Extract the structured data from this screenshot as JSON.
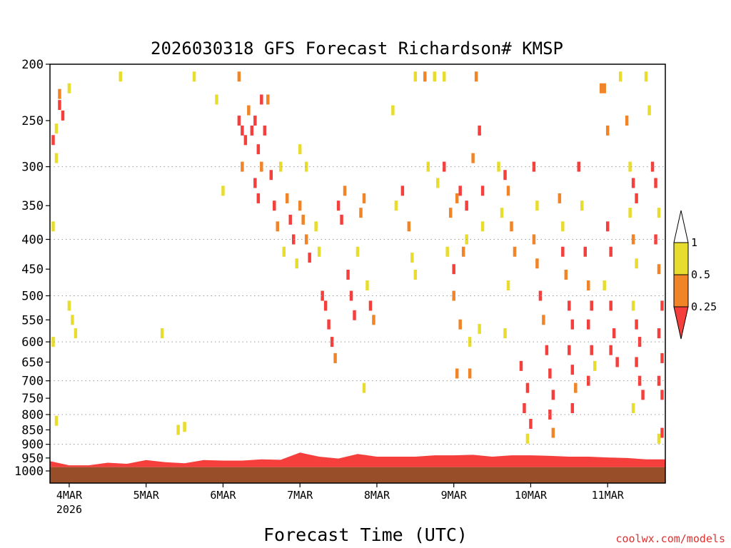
{
  "chart_data": {
    "type": "heatmap",
    "title": "2026030318 GFS Forecast Richardson# KMSP",
    "xlabel": "Forecast Time (UTC)",
    "ylabel": "",
    "credit": "coolwx.com/models",
    "y_axis": {
      "scale": "log-pressure",
      "inverted": true,
      "range": [
        200,
        1000
      ],
      "ticks": [
        200,
        250,
        300,
        350,
        400,
        450,
        500,
        550,
        600,
        650,
        700,
        750,
        800,
        850,
        900,
        950,
        1000
      ],
      "gridlines": [
        300,
        400,
        500,
        600,
        700,
        800,
        900
      ]
    },
    "x_axis": {
      "range_hours": [
        0,
        192
      ],
      "ticks": [
        {
          "label": "4MAR",
          "sublabel": "2026",
          "hour": 6
        },
        {
          "label": "5MAR",
          "hour": 30
        },
        {
          "label": "6MAR",
          "hour": 54
        },
        {
          "label": "7MAR",
          "hour": 78
        },
        {
          "label": "8MAR",
          "hour": 102
        },
        {
          "label": "9MAR",
          "hour": 126
        },
        {
          "label": "10MAR",
          "hour": 150
        },
        {
          "label": "11MAR",
          "hour": 174
        }
      ]
    },
    "legend": {
      "position": "right",
      "boundaries": [
        "1",
        "0.5",
        "0.25"
      ],
      "bins": [
        {
          "range": ">1",
          "color": "#ffffff"
        },
        {
          "range": "0.5-1",
          "color": "#e8dc2e"
        },
        {
          "range": "0.25-0.5",
          "color": "#f08427"
        },
        {
          "range": "<0.25",
          "color": "#f53f3c"
        }
      ]
    },
    "colors": {
      "ground": "#994e2a",
      "yellow": "#e8dc2e",
      "orange": "#f08427",
      "red": "#f53f3c"
    },
    "surface_pressure_hpa": 985,
    "boundary_layer_top_hpa": [
      [
        0,
        962
      ],
      [
        6,
        978
      ],
      [
        12,
        978
      ],
      [
        18,
        968
      ],
      [
        24,
        972
      ],
      [
        30,
        958
      ],
      [
        36,
        966
      ],
      [
        42,
        970
      ],
      [
        48,
        958
      ],
      [
        54,
        960
      ],
      [
        60,
        960
      ],
      [
        66,
        955
      ],
      [
        72,
        957
      ],
      [
        78,
        930
      ],
      [
        84,
        945
      ],
      [
        90,
        952
      ],
      [
        96,
        935
      ],
      [
        102,
        945
      ],
      [
        108,
        945
      ],
      [
        114,
        945
      ],
      [
        120,
        940
      ],
      [
        126,
        940
      ],
      [
        132,
        938
      ],
      [
        138,
        945
      ],
      [
        144,
        940
      ],
      [
        150,
        940
      ],
      [
        156,
        942
      ],
      [
        162,
        945
      ],
      [
        168,
        945
      ],
      [
        174,
        948
      ],
      [
        180,
        950
      ],
      [
        186,
        955
      ],
      [
        192,
        955
      ]
    ],
    "cells": [
      {
        "h": 3,
        "p": 225,
        "c": "orange"
      },
      {
        "h": 3,
        "p": 235,
        "c": "red"
      },
      {
        "h": 4,
        "p": 245,
        "c": "red"
      },
      {
        "h": 2,
        "p": 258,
        "c": "yellow"
      },
      {
        "h": 1,
        "p": 270,
        "c": "red"
      },
      {
        "h": 6,
        "p": 220,
        "c": "yellow"
      },
      {
        "h": 2,
        "p": 290,
        "c": "yellow"
      },
      {
        "h": 1,
        "p": 380,
        "c": "yellow"
      },
      {
        "h": 6,
        "p": 520,
        "c": "yellow"
      },
      {
        "h": 7,
        "p": 550,
        "c": "yellow"
      },
      {
        "h": 8,
        "p": 580,
        "c": "yellow"
      },
      {
        "h": 1,
        "p": 600,
        "c": "yellow"
      },
      {
        "h": 2,
        "p": 820,
        "c": "yellow"
      },
      {
        "h": 22,
        "p": 210,
        "c": "yellow"
      },
      {
        "h": 45,
        "p": 210,
        "c": "yellow"
      },
      {
        "h": 35,
        "p": 580,
        "c": "yellow"
      },
      {
        "h": 40,
        "p": 850,
        "c": "yellow"
      },
      {
        "h": 42,
        "p": 840,
        "c": "yellow"
      },
      {
        "h": 52,
        "p": 230,
        "c": "yellow"
      },
      {
        "h": 54,
        "p": 330,
        "c": "yellow"
      },
      {
        "h": 59,
        "p": 210,
        "c": "orange"
      },
      {
        "h": 59,
        "p": 250,
        "c": "red"
      },
      {
        "h": 60,
        "p": 260,
        "c": "red"
      },
      {
        "h": 61,
        "p": 270,
        "c": "red"
      },
      {
        "h": 60,
        "p": 300,
        "c": "orange"
      },
      {
        "h": 62,
        "p": 240,
        "c": "orange"
      },
      {
        "h": 63,
        "p": 260,
        "c": "red"
      },
      {
        "h": 64,
        "p": 250,
        "c": "red"
      },
      {
        "h": 65,
        "p": 280,
        "c": "red"
      },
      {
        "h": 66,
        "p": 300,
        "c": "orange"
      },
      {
        "h": 64,
        "p": 320,
        "c": "red"
      },
      {
        "h": 65,
        "p": 340,
        "c": "red"
      },
      {
        "h": 66,
        "p": 230,
        "c": "red"
      },
      {
        "h": 67,
        "p": 260,
        "c": "red"
      },
      {
        "h": 68,
        "p": 230,
        "c": "orange"
      },
      {
        "h": 69,
        "p": 310,
        "c": "red"
      },
      {
        "h": 70,
        "p": 350,
        "c": "red"
      },
      {
        "h": 71,
        "p": 380,
        "c": "orange"
      },
      {
        "h": 72,
        "p": 300,
        "c": "yellow"
      },
      {
        "h": 74,
        "p": 340,
        "c": "orange"
      },
      {
        "h": 75,
        "p": 370,
        "c": "red"
      },
      {
        "h": 76,
        "p": 400,
        "c": "red"
      },
      {
        "h": 73,
        "p": 420,
        "c": "yellow"
      },
      {
        "h": 77,
        "p": 440,
        "c": "yellow"
      },
      {
        "h": 78,
        "p": 350,
        "c": "orange"
      },
      {
        "h": 79,
        "p": 370,
        "c": "orange"
      },
      {
        "h": 80,
        "p": 400,
        "c": "orange"
      },
      {
        "h": 81,
        "p": 430,
        "c": "red"
      },
      {
        "h": 78,
        "p": 280,
        "c": "yellow"
      },
      {
        "h": 80,
        "p": 300,
        "c": "yellow"
      },
      {
        "h": 83,
        "p": 380,
        "c": "yellow"
      },
      {
        "h": 84,
        "p": 420,
        "c": "yellow"
      },
      {
        "h": 85,
        "p": 500,
        "c": "red"
      },
      {
        "h": 86,
        "p": 520,
        "c": "red"
      },
      {
        "h": 87,
        "p": 560,
        "c": "red"
      },
      {
        "h": 88,
        "p": 600,
        "c": "red"
      },
      {
        "h": 89,
        "p": 640,
        "c": "orange"
      },
      {
        "h": 90,
        "p": 350,
        "c": "red"
      },
      {
        "h": 91,
        "p": 370,
        "c": "red"
      },
      {
        "h": 92,
        "p": 330,
        "c": "orange"
      },
      {
        "h": 93,
        "p": 460,
        "c": "red"
      },
      {
        "h": 94,
        "p": 500,
        "c": "red"
      },
      {
        "h": 95,
        "p": 540,
        "c": "red"
      },
      {
        "h": 96,
        "p": 420,
        "c": "yellow"
      },
      {
        "h": 97,
        "p": 360,
        "c": "orange"
      },
      {
        "h": 98,
        "p": 340,
        "c": "orange"
      },
      {
        "h": 99,
        "p": 480,
        "c": "yellow"
      },
      {
        "h": 100,
        "p": 520,
        "c": "red"
      },
      {
        "h": 101,
        "p": 550,
        "c": "orange"
      },
      {
        "h": 98,
        "p": 720,
        "c": "yellow"
      },
      {
        "h": 107,
        "p": 240,
        "c": "yellow"
      },
      {
        "h": 108,
        "p": 350,
        "c": "yellow"
      },
      {
        "h": 110,
        "p": 330,
        "c": "red"
      },
      {
        "h": 112,
        "p": 380,
        "c": "orange"
      },
      {
        "h": 113,
        "p": 430,
        "c": "yellow"
      },
      {
        "h": 114,
        "p": 460,
        "c": "yellow"
      },
      {
        "h": 114,
        "p": 210,
        "c": "yellow"
      },
      {
        "h": 117,
        "p": 210,
        "c": "orange"
      },
      {
        "h": 120,
        "p": 210,
        "c": "yellow"
      },
      {
        "h": 123,
        "p": 210,
        "c": "yellow"
      },
      {
        "h": 118,
        "p": 300,
        "c": "yellow"
      },
      {
        "h": 121,
        "p": 320,
        "c": "yellow"
      },
      {
        "h": 123,
        "p": 300,
        "c": "red"
      },
      {
        "h": 125,
        "p": 360,
        "c": "orange"
      },
      {
        "h": 124,
        "p": 420,
        "c": "yellow"
      },
      {
        "h": 127,
        "p": 340,
        "c": "orange"
      },
      {
        "h": 128,
        "p": 330,
        "c": "red"
      },
      {
        "h": 130,
        "p": 350,
        "c": "red"
      },
      {
        "h": 129,
        "p": 420,
        "c": "orange"
      },
      {
        "h": 130,
        "p": 400,
        "c": "yellow"
      },
      {
        "h": 126,
        "p": 450,
        "c": "red"
      },
      {
        "h": 126,
        "p": 500,
        "c": "orange"
      },
      {
        "h": 128,
        "p": 560,
        "c": "orange"
      },
      {
        "h": 131,
        "p": 600,
        "c": "yellow"
      },
      {
        "h": 127,
        "p": 680,
        "c": "orange"
      },
      {
        "h": 131,
        "p": 680,
        "c": "orange"
      },
      {
        "h": 133,
        "p": 210,
        "c": "orange"
      },
      {
        "h": 134,
        "p": 260,
        "c": "red"
      },
      {
        "h": 132,
        "p": 290,
        "c": "orange"
      },
      {
        "h": 135,
        "p": 330,
        "c": "red"
      },
      {
        "h": 135,
        "p": 380,
        "c": "yellow"
      },
      {
        "h": 134,
        "p": 570,
        "c": "yellow"
      },
      {
        "h": 140,
        "p": 300,
        "c": "yellow"
      },
      {
        "h": 142,
        "p": 310,
        "c": "red"
      },
      {
        "h": 143,
        "p": 330,
        "c": "orange"
      },
      {
        "h": 141,
        "p": 360,
        "c": "yellow"
      },
      {
        "h": 144,
        "p": 380,
        "c": "orange"
      },
      {
        "h": 145,
        "p": 420,
        "c": "orange"
      },
      {
        "h": 143,
        "p": 480,
        "c": "yellow"
      },
      {
        "h": 142,
        "p": 580,
        "c": "yellow"
      },
      {
        "h": 147,
        "p": 660,
        "c": "red"
      },
      {
        "h": 149,
        "p": 720,
        "c": "red"
      },
      {
        "h": 148,
        "p": 780,
        "c": "red"
      },
      {
        "h": 150,
        "p": 830,
        "c": "red"
      },
      {
        "h": 149,
        "p": 880,
        "c": "yellow"
      },
      {
        "h": 151,
        "p": 300,
        "c": "red"
      },
      {
        "h": 152,
        "p": 350,
        "c": "yellow"
      },
      {
        "h": 151,
        "p": 400,
        "c": "orange"
      },
      {
        "h": 152,
        "p": 440,
        "c": "orange"
      },
      {
        "h": 153,
        "p": 500,
        "c": "red"
      },
      {
        "h": 154,
        "p": 550,
        "c": "orange"
      },
      {
        "h": 155,
        "p": 620,
        "c": "red"
      },
      {
        "h": 156,
        "p": 680,
        "c": "red"
      },
      {
        "h": 157,
        "p": 740,
        "c": "red"
      },
      {
        "h": 156,
        "p": 800,
        "c": "red"
      },
      {
        "h": 157,
        "p": 860,
        "c": "orange"
      },
      {
        "h": 159,
        "p": 340,
        "c": "orange"
      },
      {
        "h": 160,
        "p": 380,
        "c": "yellow"
      },
      {
        "h": 160,
        "p": 420,
        "c": "red"
      },
      {
        "h": 161,
        "p": 460,
        "c": "orange"
      },
      {
        "h": 162,
        "p": 520,
        "c": "red"
      },
      {
        "h": 163,
        "p": 560,
        "c": "red"
      },
      {
        "h": 162,
        "p": 620,
        "c": "red"
      },
      {
        "h": 163,
        "p": 670,
        "c": "red"
      },
      {
        "h": 164,
        "p": 720,
        "c": "orange"
      },
      {
        "h": 163,
        "p": 780,
        "c": "red"
      },
      {
        "h": 165,
        "p": 300,
        "c": "red"
      },
      {
        "h": 166,
        "p": 350,
        "c": "yellow"
      },
      {
        "h": 167,
        "p": 420,
        "c": "red"
      },
      {
        "h": 168,
        "p": 480,
        "c": "orange"
      },
      {
        "h": 169,
        "p": 520,
        "c": "red"
      },
      {
        "h": 168,
        "p": 560,
        "c": "red"
      },
      {
        "h": 169,
        "p": 620,
        "c": "red"
      },
      {
        "h": 170,
        "p": 660,
        "c": "yellow"
      },
      {
        "h": 168,
        "p": 700,
        "c": "red"
      },
      {
        "h": 172,
        "p": 220,
        "c": "orange"
      },
      {
        "h": 173,
        "p": 220,
        "c": "orange"
      },
      {
        "h": 174,
        "p": 260,
        "c": "orange"
      },
      {
        "h": 174,
        "p": 380,
        "c": "red"
      },
      {
        "h": 175,
        "p": 420,
        "c": "red"
      },
      {
        "h": 173,
        "p": 480,
        "c": "yellow"
      },
      {
        "h": 175,
        "p": 520,
        "c": "red"
      },
      {
        "h": 176,
        "p": 580,
        "c": "red"
      },
      {
        "h": 175,
        "p": 620,
        "c": "red"
      },
      {
        "h": 177,
        "p": 650,
        "c": "red"
      },
      {
        "h": 178,
        "p": 210,
        "c": "yellow"
      },
      {
        "h": 180,
        "p": 250,
        "c": "orange"
      },
      {
        "h": 181,
        "p": 300,
        "c": "yellow"
      },
      {
        "h": 182,
        "p": 320,
        "c": "red"
      },
      {
        "h": 183,
        "p": 340,
        "c": "red"
      },
      {
        "h": 181,
        "p": 360,
        "c": "yellow"
      },
      {
        "h": 182,
        "p": 400,
        "c": "orange"
      },
      {
        "h": 183,
        "p": 440,
        "c": "yellow"
      },
      {
        "h": 182,
        "p": 520,
        "c": "yellow"
      },
      {
        "h": 183,
        "p": 560,
        "c": "red"
      },
      {
        "h": 184,
        "p": 600,
        "c": "red"
      },
      {
        "h": 183,
        "p": 650,
        "c": "red"
      },
      {
        "h": 184,
        "p": 700,
        "c": "red"
      },
      {
        "h": 185,
        "p": 740,
        "c": "red"
      },
      {
        "h": 182,
        "p": 780,
        "c": "yellow"
      },
      {
        "h": 186,
        "p": 210,
        "c": "yellow"
      },
      {
        "h": 187,
        "p": 240,
        "c": "yellow"
      },
      {
        "h": 188,
        "p": 300,
        "c": "red"
      },
      {
        "h": 189,
        "p": 320,
        "c": "red"
      },
      {
        "h": 190,
        "p": 360,
        "c": "yellow"
      },
      {
        "h": 189,
        "p": 400,
        "c": "red"
      },
      {
        "h": 190,
        "p": 450,
        "c": "orange"
      },
      {
        "h": 191,
        "p": 520,
        "c": "red"
      },
      {
        "h": 190,
        "p": 580,
        "c": "red"
      },
      {
        "h": 191,
        "p": 640,
        "c": "red"
      },
      {
        "h": 190,
        "p": 700,
        "c": "red"
      },
      {
        "h": 191,
        "p": 740,
        "c": "red"
      },
      {
        "h": 191,
        "p": 860,
        "c": "red"
      },
      {
        "h": 190,
        "p": 880,
        "c": "yellow"
      }
    ]
  }
}
